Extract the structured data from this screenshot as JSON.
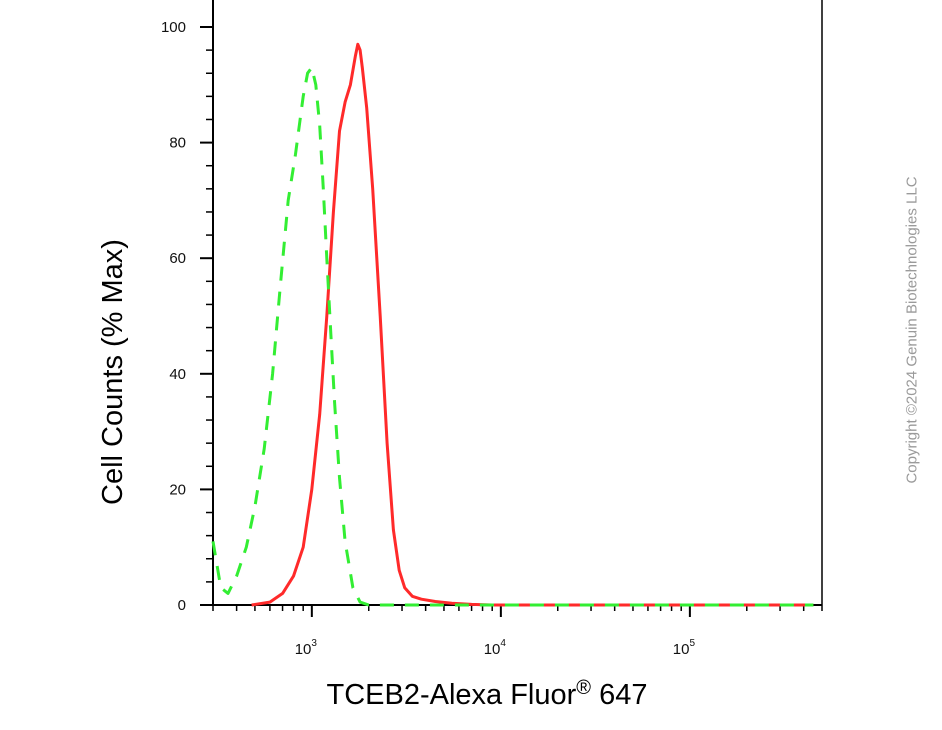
{
  "chart_data": {
    "type": "line",
    "title": "",
    "xlabel": "TCEB2-Alexa Fluor",
    "xlabel_mark": "®",
    "xlabel_suffix": " 647",
    "ylabel": "Cell Counts (% Max)",
    "x_scale": "log",
    "xlim": [
      300,
      500000
    ],
    "ylim": [
      0,
      100
    ],
    "y_ticks": [
      0,
      20,
      40,
      60,
      80,
      100
    ],
    "x_ticks": [
      {
        "value": 1000,
        "base": "10",
        "exp": "3"
      },
      {
        "value": 10000,
        "base": "10",
        "exp": "4"
      },
      {
        "value": 100000,
        "base": "10",
        "exp": "5"
      }
    ],
    "grid": false,
    "series": [
      {
        "color": "#ff2a2a",
        "style": "solid",
        "x": [
          480,
          600,
          700,
          800,
          900,
          1000,
          1100,
          1200,
          1300,
          1400,
          1500,
          1600,
          1700,
          1750,
          1800,
          1850,
          1950,
          2100,
          2300,
          2500,
          2700,
          2900,
          3100,
          3400,
          3800,
          4500,
          5500,
          7000,
          9000,
          12000,
          20000,
          50000,
          100000,
          200000,
          450000
        ],
        "y": [
          0,
          0.5,
          2,
          5,
          10,
          20,
          33,
          50,
          68,
          82,
          87,
          90,
          95,
          97,
          96,
          93,
          86,
          72,
          50,
          28,
          13,
          6,
          3,
          1.5,
          1,
          0.6,
          0.3,
          0.1,
          0,
          0,
          0,
          0,
          0,
          0,
          0
        ]
      },
      {
        "color": "#33ee33",
        "style": "dashed",
        "x": [
          300,
          330,
          360,
          400,
          450,
          500,
          560,
          620,
          680,
          750,
          820,
          900,
          950,
          1000,
          1050,
          1100,
          1150,
          1200,
          1260,
          1320,
          1400,
          1500,
          1650,
          1800,
          2000,
          2500,
          3000,
          4000,
          6000,
          10000,
          30000,
          100000,
          450000
        ],
        "y": [
          11,
          3,
          2,
          5,
          10,
          17,
          27,
          40,
          55,
          70,
          78,
          88,
          92,
          93,
          90,
          83,
          72,
          60,
          47,
          35,
          22,
          11,
          3,
          0.5,
          0,
          0,
          0,
          0,
          0,
          0,
          0,
          0,
          0
        ]
      }
    ]
  },
  "watermark": "Copyright ©2024 Genuin Biotechnologies LLC"
}
